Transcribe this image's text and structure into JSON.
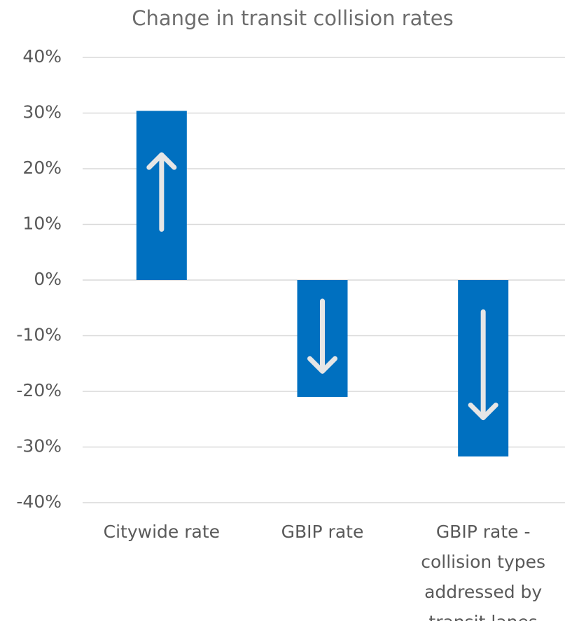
{
  "chart_data": {
    "type": "bar",
    "title": "Change in transit collision rates",
    "categories": [
      "Citywide rate",
      "GBIP rate",
      "GBIP rate - collision types addressed by transit lanes"
    ],
    "values": [
      30.4,
      -21,
      -31.7
    ],
    "color": "#0070c0",
    "ylim": [
      -40,
      40
    ],
    "yticks": [
      {
        "value": -40,
        "label": "-40%"
      },
      {
        "value": -30,
        "label": "-30%"
      },
      {
        "value": -20,
        "label": "-20%"
      },
      {
        "value": -10,
        "label": "-10%"
      },
      {
        "value": 0,
        "label": "0%"
      },
      {
        "value": 10,
        "label": "10%"
      },
      {
        "value": 20,
        "label": "20%"
      },
      {
        "value": 30,
        "label": "30%"
      },
      {
        "value": 40,
        "label": "40%"
      }
    ],
    "grid": true
  }
}
